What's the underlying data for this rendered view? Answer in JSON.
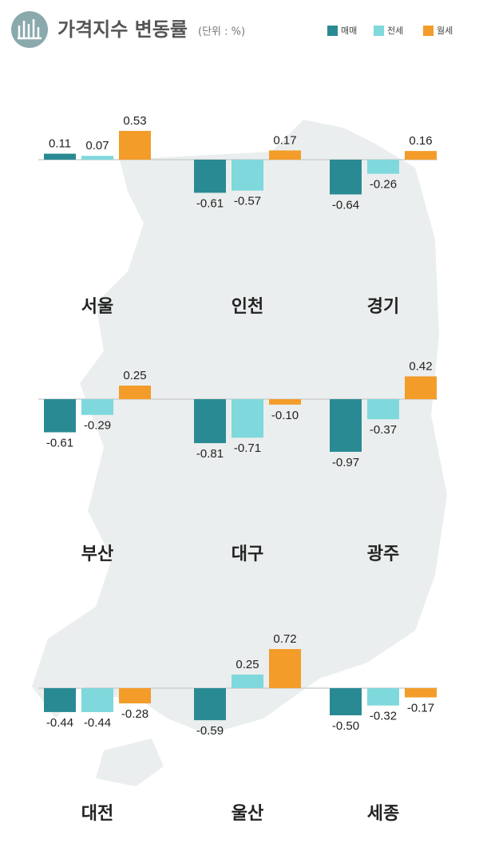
{
  "chart_data": {
    "type": "bar",
    "title": "가격지수 변동률",
    "subtitle": "(단위 : %)",
    "categories": [
      "서울",
      "인천",
      "경기",
      "부산",
      "대구",
      "광주",
      "대전",
      "울산",
      "세종"
    ],
    "series": [
      {
        "name": "매매",
        "color": "#2a8a93",
        "values": [
          0.11,
          -0.61,
          -0.64,
          -0.61,
          -0.81,
          -0.97,
          -0.44,
          -0.59,
          -0.5
        ],
        "value_labels": [
          "0.11",
          "-0.61",
          "-0.64",
          "-0.61",
          "-0.81",
          "-0.97",
          "-0.44",
          "-0.59",
          "-0.50"
        ]
      },
      {
        "name": "전세",
        "color": "#7fd8dc",
        "values": [
          0.07,
          -0.57,
          -0.26,
          -0.29,
          -0.71,
          -0.37,
          -0.44,
          0.25,
          -0.32
        ],
        "value_labels": [
          "0.07",
          "-0.57",
          "-0.26",
          "-0.29",
          "-0.71",
          "-0.37",
          "-0.44",
          "0.25",
          "-0.32"
        ]
      },
      {
        "name": "월세",
        "color": "#f39c2a",
        "values": [
          0.53,
          0.17,
          0.16,
          0.25,
          -0.1,
          0.42,
          -0.28,
          0.72,
          -0.17
        ],
        "value_labels": [
          "0.53",
          "0.17",
          "0.16",
          "0.25",
          "-0.10",
          "0.42",
          "-0.28",
          "0.72",
          "-0.17"
        ]
      }
    ]
  }
}
